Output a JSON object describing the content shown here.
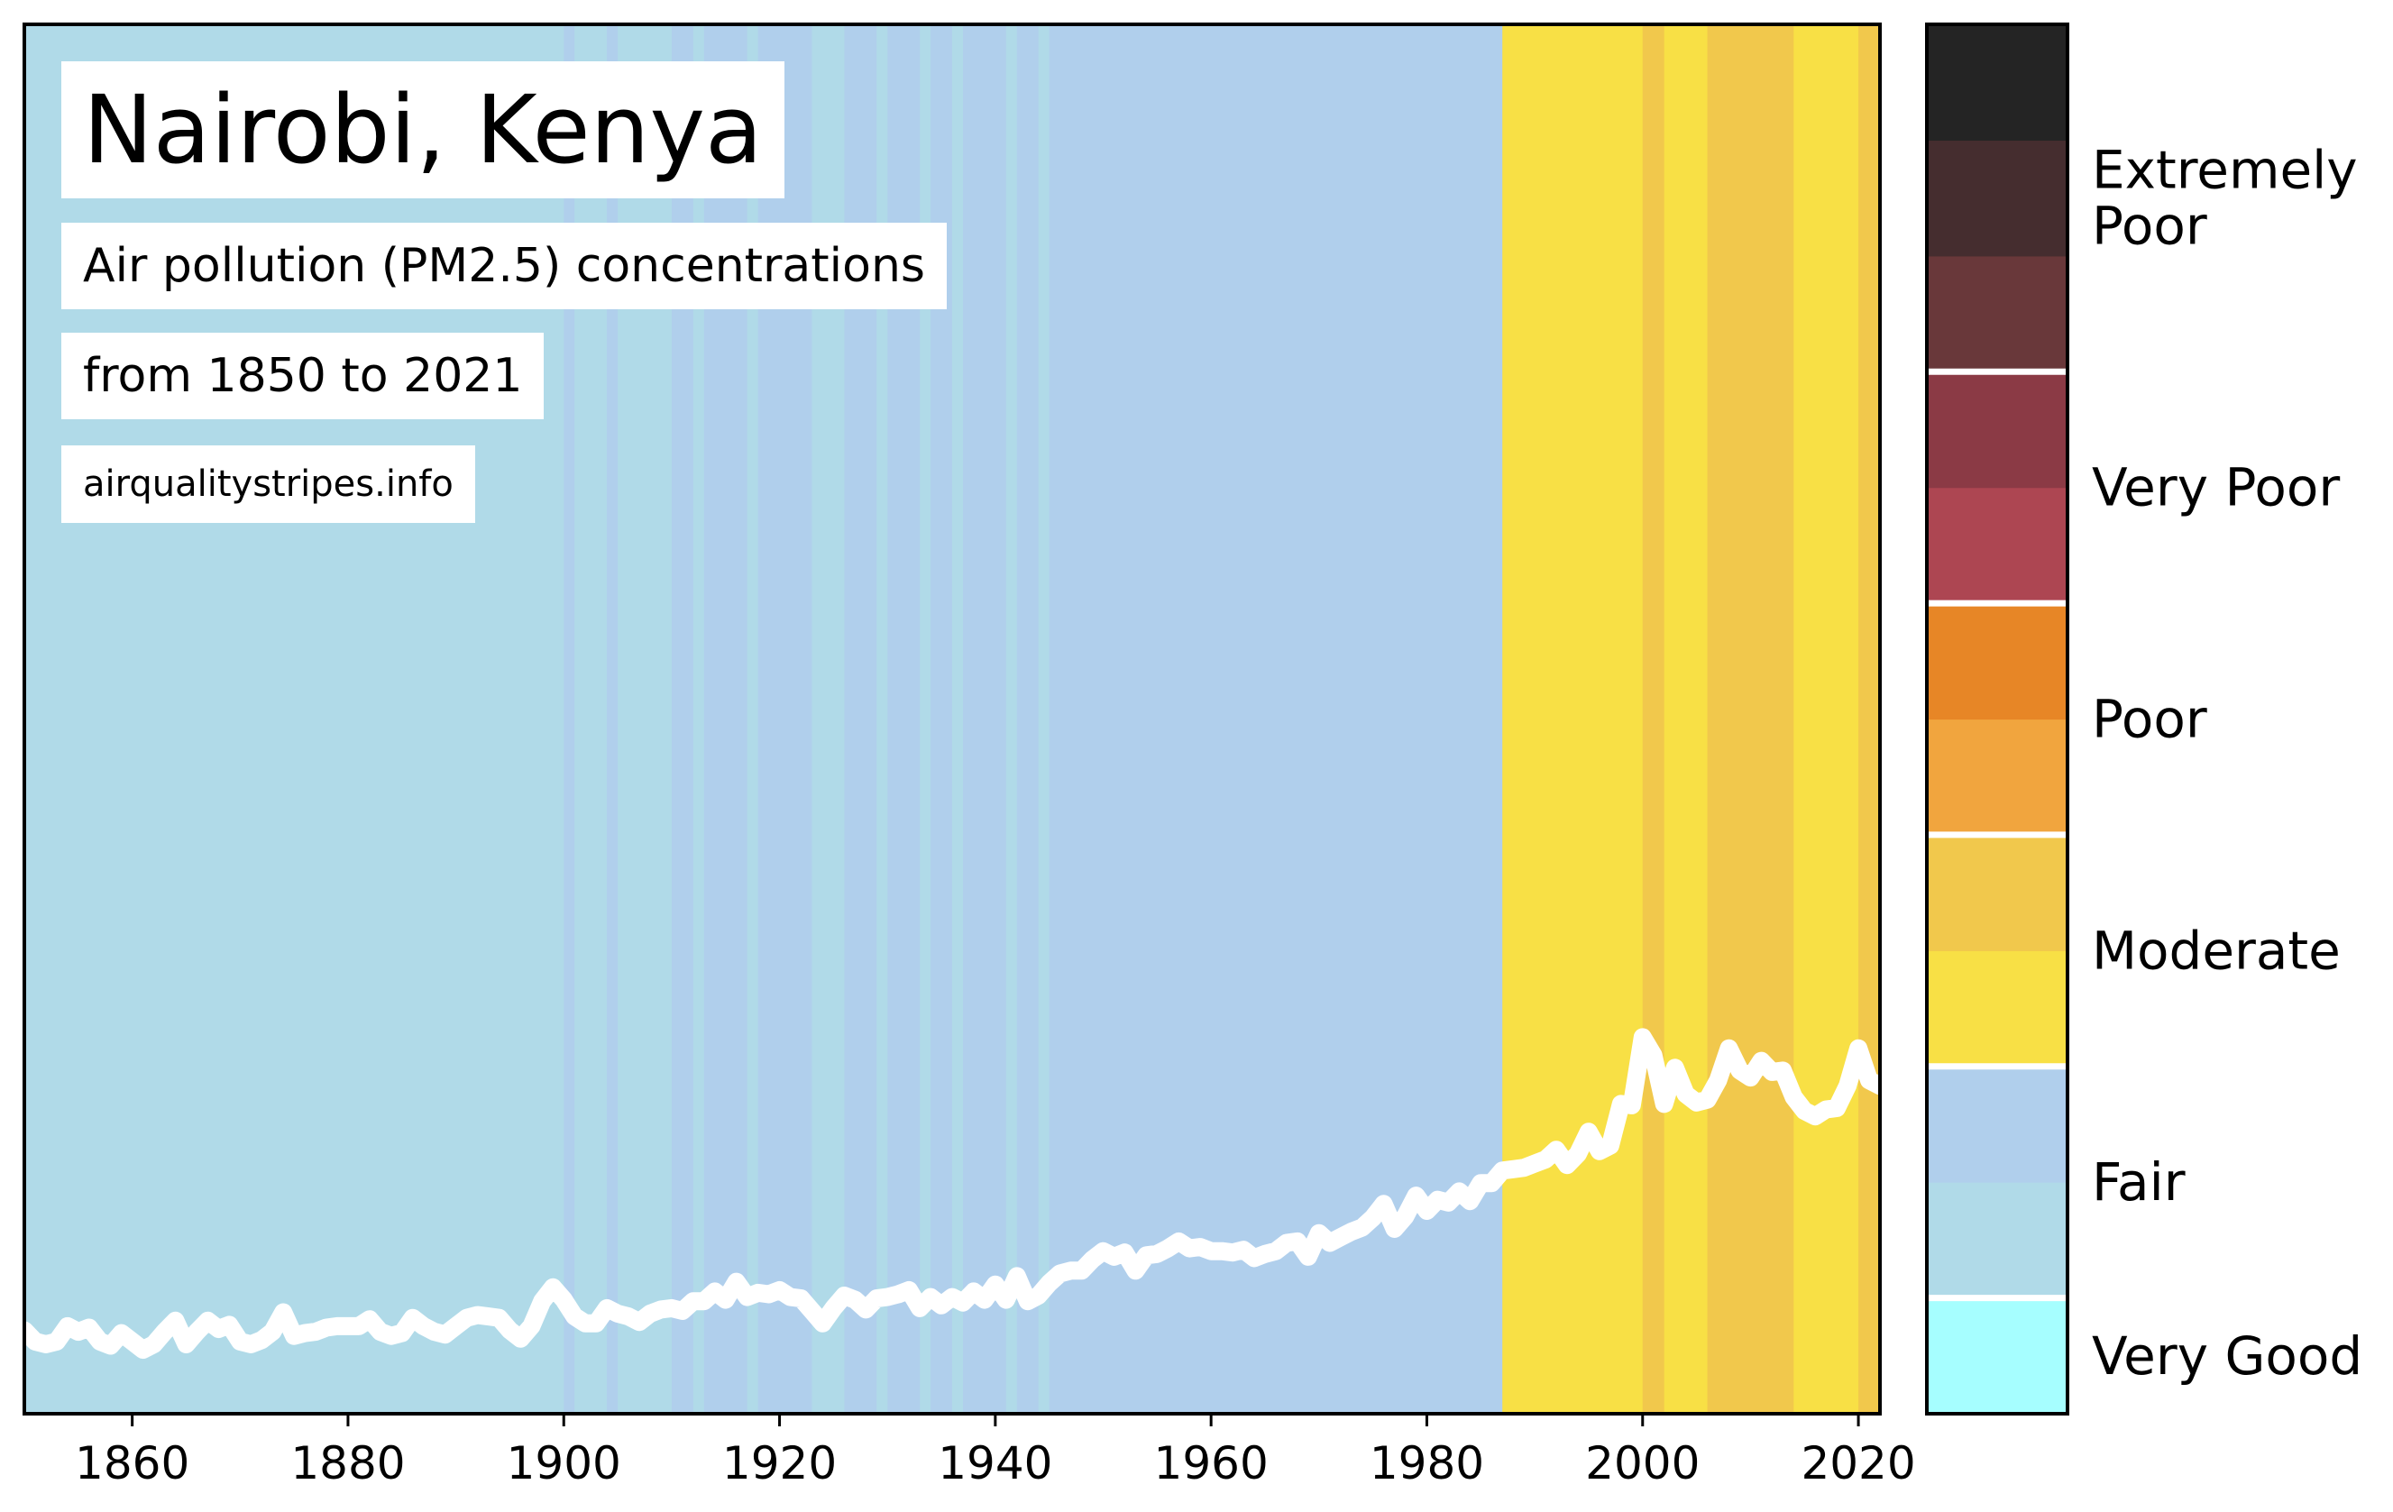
{
  "chart_data": {
    "type": "area",
    "title": "Nairobi, Kenya",
    "subtitle": "Air pollution (PM2.5) concentrations",
    "date_range": "from 1850 to 2021",
    "source": "airqualitystripes.info",
    "xlabel": "",
    "ylabel": "",
    "xlim": [
      1850,
      2022
    ],
    "x_ticks": [
      "1860",
      "1880",
      "1900",
      "1920",
      "1940",
      "1960",
      "1980",
      "2000",
      "2020"
    ],
    "stripes": [
      {
        "from": 1850,
        "to": 1900,
        "category": "Very Good light",
        "color": "#b0dae8"
      },
      {
        "from": 1900,
        "to": 1901,
        "category": "Fair",
        "color": "#b0cfec"
      },
      {
        "from": 1901,
        "to": 1904,
        "category": "Very Good light",
        "color": "#b0dae8"
      },
      {
        "from": 1904,
        "to": 1905,
        "category": "Fair",
        "color": "#b0cfec"
      },
      {
        "from": 1905,
        "to": 1910,
        "category": "Very Good light",
        "color": "#b0dae8"
      },
      {
        "from": 1910,
        "to": 1912,
        "category": "Fair",
        "color": "#b0cfec"
      },
      {
        "from": 1912,
        "to": 1913,
        "category": "Very Good light",
        "color": "#b0dae8"
      },
      {
        "from": 1913,
        "to": 1917,
        "category": "Fair",
        "color": "#b0cfec"
      },
      {
        "from": 1917,
        "to": 1918,
        "category": "Very Good light",
        "color": "#b0dae8"
      },
      {
        "from": 1918,
        "to": 1923,
        "category": "Fair",
        "color": "#b0cfec"
      },
      {
        "from": 1923,
        "to": 1926,
        "category": "Very Good light",
        "color": "#b0dae8"
      },
      {
        "from": 1926,
        "to": 1929,
        "category": "Fair",
        "color": "#b0cfec"
      },
      {
        "from": 1929,
        "to": 1930,
        "category": "Very Good light",
        "color": "#b0dae8"
      },
      {
        "from": 1930,
        "to": 1933,
        "category": "Fair",
        "color": "#b0cfec"
      },
      {
        "from": 1933,
        "to": 1934,
        "category": "Very Good light",
        "color": "#b0dae8"
      },
      {
        "from": 1934,
        "to": 1936,
        "category": "Fair",
        "color": "#b0cfec"
      },
      {
        "from": 1936,
        "to": 1937,
        "category": "Very Good light",
        "color": "#b0dae8"
      },
      {
        "from": 1937,
        "to": 1941,
        "category": "Fair",
        "color": "#b0cfec"
      },
      {
        "from": 1941,
        "to": 1942,
        "category": "Very Good light",
        "color": "#b0dae8"
      },
      {
        "from": 1942,
        "to": 1944,
        "category": "Fair",
        "color": "#b0cfec"
      },
      {
        "from": 1944,
        "to": 1945,
        "category": "Very Good light",
        "color": "#b0dae8"
      },
      {
        "from": 1945,
        "to": 1987,
        "category": "Fair",
        "color": "#b0cfec"
      },
      {
        "from": 1987,
        "to": 2000,
        "category": "Moderate",
        "color": "#f8e045"
      },
      {
        "from": 2000,
        "to": 2002,
        "category": "Moderate dark",
        "color": "#f1c84c"
      },
      {
        "from": 2002,
        "to": 2006,
        "category": "Moderate",
        "color": "#f8e045"
      },
      {
        "from": 2006,
        "to": 2014,
        "category": "Moderate dark",
        "color": "#f1c84c"
      },
      {
        "from": 2014,
        "to": 2020,
        "category": "Moderate",
        "color": "#f8e045"
      },
      {
        "from": 2020,
        "to": 2022,
        "category": "Moderate dark",
        "color": "#f1c84c"
      }
    ],
    "series": [
      {
        "color": "#ffffff",
        "points": [
          [
            1850,
            6.0
          ],
          [
            1851,
            5.2
          ],
          [
            1852,
            5.0
          ],
          [
            1853,
            5.2
          ],
          [
            1854,
            6.3
          ],
          [
            1855,
            5.9
          ],
          [
            1856,
            6.2
          ],
          [
            1857,
            5.2
          ],
          [
            1858,
            4.9
          ],
          [
            1859,
            5.8
          ],
          [
            1860,
            5.2
          ],
          [
            1861,
            4.6
          ],
          [
            1862,
            5.0
          ],
          [
            1863,
            5.9
          ],
          [
            1864,
            6.7
          ],
          [
            1865,
            5.0
          ],
          [
            1866,
            5.9
          ],
          [
            1867,
            6.7
          ],
          [
            1868,
            6.1
          ],
          [
            1869,
            6.4
          ],
          [
            1870,
            5.2
          ],
          [
            1871,
            5.0
          ],
          [
            1872,
            5.3
          ],
          [
            1873,
            5.9
          ],
          [
            1874,
            7.3
          ],
          [
            1875,
            5.6
          ],
          [
            1876,
            5.8
          ],
          [
            1877,
            5.9
          ],
          [
            1878,
            6.2
          ],
          [
            1879,
            6.3
          ],
          [
            1880,
            6.3
          ],
          [
            1881,
            6.3
          ],
          [
            1882,
            6.8
          ],
          [
            1883,
            5.9
          ],
          [
            1884,
            5.6
          ],
          [
            1885,
            5.8
          ],
          [
            1886,
            6.9
          ],
          [
            1887,
            6.3
          ],
          [
            1888,
            5.9
          ],
          [
            1889,
            5.7
          ],
          [
            1890,
            6.3
          ],
          [
            1891,
            6.9
          ],
          [
            1892,
            7.1
          ],
          [
            1893,
            7.0
          ],
          [
            1894,
            6.9
          ],
          [
            1895,
            6.0
          ],
          [
            1896,
            5.4
          ],
          [
            1897,
            6.3
          ],
          [
            1898,
            8.1
          ],
          [
            1899,
            9.1
          ],
          [
            1900,
            8.2
          ],
          [
            1901,
            7.0
          ],
          [
            1902,
            6.5
          ],
          [
            1903,
            6.5
          ],
          [
            1904,
            7.6
          ],
          [
            1905,
            7.2
          ],
          [
            1906,
            7.0
          ],
          [
            1907,
            6.6
          ],
          [
            1908,
            7.2
          ],
          [
            1909,
            7.5
          ],
          [
            1910,
            7.6
          ],
          [
            1911,
            7.4
          ],
          [
            1912,
            8.1
          ],
          [
            1913,
            8.1
          ],
          [
            1914,
            8.8
          ],
          [
            1915,
            8.2
          ],
          [
            1916,
            9.5
          ],
          [
            1917,
            8.4
          ],
          [
            1918,
            8.7
          ],
          [
            1919,
            8.6
          ],
          [
            1920,
            8.9
          ],
          [
            1921,
            8.4
          ],
          [
            1922,
            8.3
          ],
          [
            1923,
            7.4
          ],
          [
            1924,
            6.5
          ],
          [
            1925,
            7.6
          ],
          [
            1926,
            8.5
          ],
          [
            1927,
            8.2
          ],
          [
            1928,
            7.5
          ],
          [
            1929,
            8.3
          ],
          [
            1930,
            8.4
          ],
          [
            1931,
            8.6
          ],
          [
            1932,
            8.9
          ],
          [
            1933,
            7.6
          ],
          [
            1934,
            8.4
          ],
          [
            1935,
            7.8
          ],
          [
            1936,
            8.4
          ],
          [
            1937,
            8.0
          ],
          [
            1938,
            8.8
          ],
          [
            1939,
            8.2
          ],
          [
            1940,
            9.3
          ],
          [
            1941,
            8.2
          ],
          [
            1942,
            9.9
          ],
          [
            1943,
            8.1
          ],
          [
            1944,
            8.5
          ],
          [
            1945,
            9.4
          ],
          [
            1946,
            10.1
          ],
          [
            1947,
            10.3
          ],
          [
            1948,
            10.3
          ],
          [
            1949,
            11.1
          ],
          [
            1950,
            11.7
          ],
          [
            1951,
            11.3
          ],
          [
            1952,
            11.6
          ],
          [
            1953,
            10.3
          ],
          [
            1954,
            11.4
          ],
          [
            1955,
            11.5
          ],
          [
            1956,
            11.9
          ],
          [
            1957,
            12.4
          ],
          [
            1958,
            11.9
          ],
          [
            1959,
            12.0
          ],
          [
            1960,
            11.7
          ],
          [
            1961,
            11.7
          ],
          [
            1962,
            11.6
          ],
          [
            1963,
            11.8
          ],
          [
            1964,
            11.2
          ],
          [
            1965,
            11.5
          ],
          [
            1966,
            11.7
          ],
          [
            1967,
            12.3
          ],
          [
            1968,
            12.4
          ],
          [
            1969,
            11.3
          ],
          [
            1970,
            13.0
          ],
          [
            1971,
            12.3
          ],
          [
            1972,
            12.7
          ],
          [
            1973,
            13.1
          ],
          [
            1974,
            13.4
          ],
          [
            1975,
            14.1
          ],
          [
            1976,
            15.1
          ],
          [
            1977,
            13.3
          ],
          [
            1978,
            14.2
          ],
          [
            1979,
            15.7
          ],
          [
            1980,
            14.6
          ],
          [
            1981,
            15.4
          ],
          [
            1982,
            15.2
          ],
          [
            1983,
            16.0
          ],
          [
            1984,
            15.3
          ],
          [
            1985,
            16.6
          ],
          [
            1986,
            16.6
          ],
          [
            1987,
            17.5
          ],
          [
            1988,
            17.6
          ],
          [
            1989,
            17.7
          ],
          [
            1990,
            18.0
          ],
          [
            1991,
            18.3
          ],
          [
            1992,
            19.0
          ],
          [
            1993,
            17.9
          ],
          [
            1994,
            18.7
          ],
          [
            1995,
            20.3
          ],
          [
            1996,
            18.9
          ],
          [
            1997,
            19.3
          ],
          [
            1998,
            22.3
          ],
          [
            1999,
            22.2
          ],
          [
            2000,
            27.1
          ],
          [
            2001,
            25.8
          ],
          [
            2002,
            22.3
          ],
          [
            2003,
            24.9
          ],
          [
            2004,
            23.0
          ],
          [
            2005,
            22.4
          ],
          [
            2006,
            22.6
          ],
          [
            2007,
            24.0
          ],
          [
            2008,
            26.3
          ],
          [
            2009,
            24.7
          ],
          [
            2010,
            24.2
          ],
          [
            2011,
            25.4
          ],
          [
            2012,
            24.6
          ],
          [
            2013,
            24.7
          ],
          [
            2014,
            22.8
          ],
          [
            2015,
            21.8
          ],
          [
            2016,
            21.4
          ],
          [
            2017,
            21.9
          ],
          [
            2018,
            22.0
          ],
          [
            2019,
            23.6
          ],
          [
            2020,
            26.3
          ],
          [
            2021,
            24.0
          ],
          [
            2022,
            23.6
          ]
        ]
      }
    ],
    "colorbar": {
      "bands": [
        {
          "label": "Very Good",
          "colors": [
            "#a6feff"
          ]
        },
        {
          "label": "Fair",
          "colors": [
            "#b0dae8",
            "#b0cfec"
          ]
        },
        {
          "label": "Moderate",
          "colors": [
            "#f8e045",
            "#f1c84c"
          ]
        },
        {
          "label": "Poor",
          "colors": [
            "#f1a53e",
            "#e78626"
          ]
        },
        {
          "label": "Very Poor",
          "colors": [
            "#ad4652",
            "#8b3a45"
          ]
        },
        {
          "label": "Extremely Poor",
          "label_lines": [
            "Extremely",
            "Poor"
          ],
          "colors": [
            "#69383a",
            "#452d2f",
            "#242424"
          ]
        }
      ]
    },
    "grid": false,
    "legend": "right colorbar"
  }
}
